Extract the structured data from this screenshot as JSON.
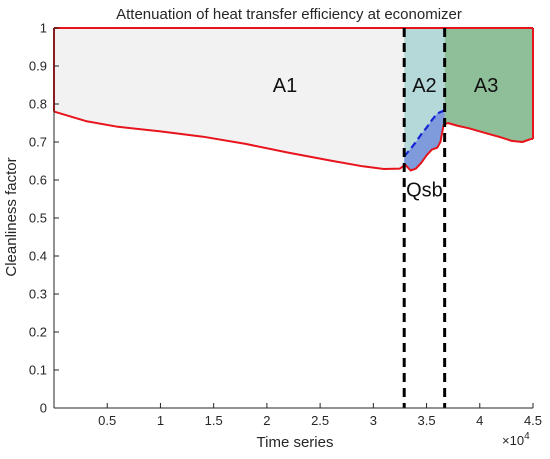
{
  "chart_data": {
    "type": "area",
    "title": "Attenuation of heat transfer efficiency at economizer",
    "xlabel": "Time series",
    "ylabel": "Cleanliness factor",
    "x_multiplier_label": "×10",
    "x_multiplier_exp": "4",
    "xlim": [
      0,
      45000
    ],
    "ylim": [
      0,
      1
    ],
    "xticks": [
      5000,
      10000,
      15000,
      20000,
      25000,
      30000,
      35000,
      40000,
      45000
    ],
    "xtick_labels": [
      "0.5",
      "1",
      "1.5",
      "2",
      "2.5",
      "3",
      "3.5",
      "4",
      "4.5"
    ],
    "yticks": [
      0,
      0.1,
      0.2,
      0.3,
      0.4,
      0.5,
      0.6,
      0.7,
      0.8,
      0.9,
      1
    ],
    "ytick_labels": [
      "0",
      "0.1",
      "0.2",
      "0.3",
      "0.4",
      "0.5",
      "0.6",
      "0.7",
      "0.8",
      "0.9",
      "1"
    ],
    "grid": false,
    "boundaries": [
      32900,
      36700
    ],
    "series": [
      {
        "values": [
          [
            0,
            0.78
          ],
          [
            3000,
            0.755
          ],
          [
            6000,
            0.74
          ],
          [
            10000,
            0.728
          ],
          [
            14000,
            0.714
          ],
          [
            18000,
            0.695
          ],
          [
            22000,
            0.672
          ],
          [
            26000,
            0.651
          ],
          [
            29000,
            0.636
          ],
          [
            31000,
            0.629
          ],
          [
            32500,
            0.63
          ],
          [
            33000,
            0.64
          ],
          [
            33500,
            0.625
          ],
          [
            34000,
            0.63
          ],
          [
            34500,
            0.645
          ],
          [
            35000,
            0.665
          ],
          [
            35500,
            0.68
          ],
          [
            36000,
            0.685
          ],
          [
            36300,
            0.7
          ],
          [
            36600,
            0.745
          ],
          [
            37000,
            0.75
          ],
          [
            38000,
            0.742
          ],
          [
            39000,
            0.736
          ],
          [
            40000,
            0.728
          ],
          [
            41000,
            0.72
          ],
          [
            42000,
            0.712
          ],
          [
            43000,
            0.703
          ],
          [
            44000,
            0.7
          ],
          [
            44800,
            0.708
          ]
        ],
        "color": "#e8141c"
      },
      {
        "values": [
          [
            32900,
            0.662
          ],
          [
            33500,
            0.682
          ],
          [
            34000,
            0.7
          ],
          [
            34500,
            0.72
          ],
          [
            35000,
            0.738
          ],
          [
            35500,
            0.758
          ],
          [
            36000,
            0.775
          ],
          [
            36600,
            0.782
          ]
        ],
        "color": "#1426d6",
        "dashed": true
      }
    ],
    "regions": [
      {
        "label": "A1",
        "x_range": [
          0,
          32900
        ],
        "color": "#f2f2f2",
        "label_at": [
          21700,
          0.85
        ]
      },
      {
        "label": "A2",
        "x_range": [
          32900,
          36700
        ],
        "color": "#b5d8d9",
        "label_at": [
          34800,
          0.85
        ]
      },
      {
        "label": "A3",
        "x_range": [
          36700,
          45000
        ],
        "color": "#8fbf99",
        "label_at": [
          40600,
          0.85
        ]
      },
      {
        "label": "Qsb",
        "x_range": [
          32900,
          36700
        ],
        "color": "#7f9bdc",
        "label_at": [
          34800,
          0.575
        ]
      }
    ],
    "colors": {
      "boundary_line": "#000000",
      "axis": "#262626",
      "region_edge": "#e8141c"
    }
  }
}
